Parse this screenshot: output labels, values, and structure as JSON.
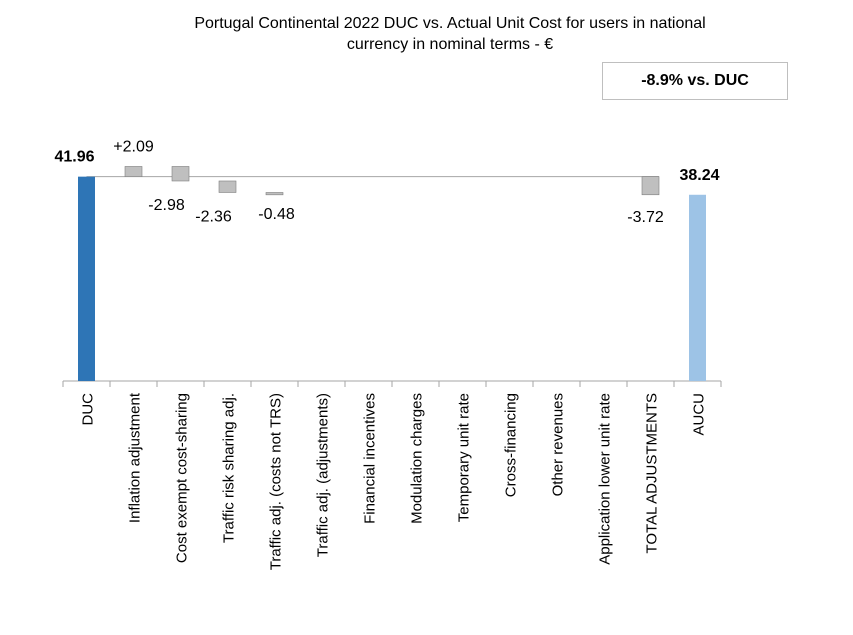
{
  "chart_data": {
    "type": "bar",
    "title_lines": [
      "Portugal Continental 2022 DUC vs. Actual Unit Cost for users in national",
      "currency in nominal terms - €"
    ],
    "summary_box": "-8.9% vs. DUC",
    "categories": [
      "DUC",
      "Inflation adjustment",
      "Cost exempt cost-sharing",
      "Traffic risk sharing adj.",
      "Traffic adj. (costs not TRS)",
      "Traffic adj. (adjustments)",
      "Financial incentives",
      "Modulation charges",
      "Temporary unit rate",
      "Cross-financing",
      "Other revenues",
      "Application lower unit rate",
      "TOTAL ADJUSTMENTS",
      "AUCU"
    ],
    "bars": [
      {
        "category": "DUC",
        "kind": "total",
        "value": 41.96,
        "label": "41.96",
        "bold": true
      },
      {
        "category": "Inflation adjustment",
        "kind": "delta",
        "value": 2.09,
        "label": "+2.09"
      },
      {
        "category": "Cost exempt cost-sharing",
        "kind": "delta",
        "value": -2.98,
        "label": "-2.98"
      },
      {
        "category": "Traffic risk sharing adj.",
        "kind": "delta",
        "value": -2.36,
        "label": "-2.36"
      },
      {
        "category": "Traffic adj. (costs not TRS)",
        "kind": "delta",
        "value": -0.48,
        "label": "-0.48"
      },
      {
        "category": "Traffic adj. (adjustments)",
        "kind": "delta",
        "value": 0,
        "label": ""
      },
      {
        "category": "Financial incentives",
        "kind": "delta",
        "value": 0,
        "label": ""
      },
      {
        "category": "Modulation charges",
        "kind": "delta",
        "value": 0,
        "label": ""
      },
      {
        "category": "Temporary unit rate",
        "kind": "delta",
        "value": 0,
        "label": ""
      },
      {
        "category": "Cross-financing",
        "kind": "delta",
        "value": 0,
        "label": ""
      },
      {
        "category": "Other revenues",
        "kind": "delta",
        "value": 0,
        "label": ""
      },
      {
        "category": "Application lower unit rate",
        "kind": "delta",
        "value": 0,
        "label": ""
      },
      {
        "category": "TOTAL ADJUSTMENTS",
        "kind": "delta",
        "value": -3.72,
        "label": "-3.72"
      },
      {
        "category": "AUCU",
        "kind": "total",
        "value": 38.24,
        "label": "38.24",
        "bold": true
      }
    ],
    "colors": {
      "duc": "#2e75b6",
      "aucu": "#9dc3e6",
      "delta": "#bfbfbf",
      "delta_stroke": "#7f7f7f",
      "axis": "#a6a6a6"
    }
  }
}
